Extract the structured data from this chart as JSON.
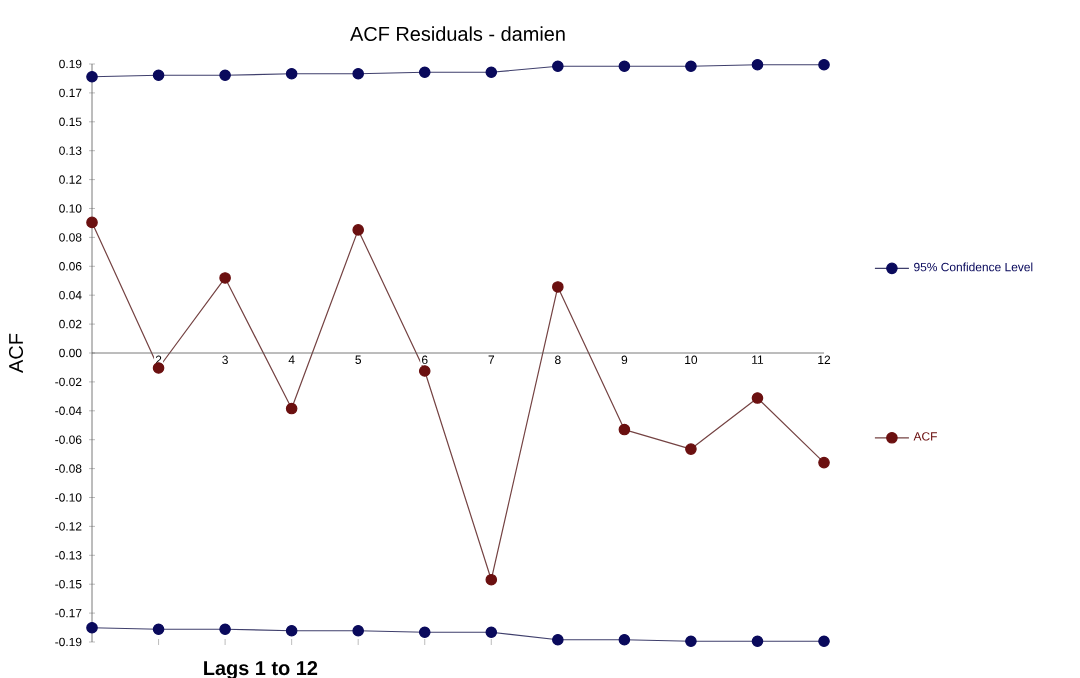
{
  "chart_data": {
    "type": "line",
    "title": "ACF Residuals - damien",
    "xlabel": "Lags  1 to 12",
    "ylabel": "ACF",
    "x": [
      1,
      2,
      3,
      4,
      5,
      6,
      7,
      8,
      9,
      10,
      11,
      12
    ],
    "series": [
      {
        "name": "95% Confidence Level",
        "color": "#0a0a5c",
        "values": [
          0.184,
          0.185,
          0.185,
          0.186,
          0.186,
          0.187,
          0.187,
          0.191,
          0.191,
          0.191,
          0.192,
          0.192
        ]
      },
      {
        "color": "#0a0a5c",
        "values": [
          -0.183,
          -0.184,
          -0.184,
          -0.185,
          -0.185,
          -0.186,
          -0.186,
          -0.191,
          -0.191,
          -0.192,
          -0.192,
          -0.192
        ]
      },
      {
        "name": "ACF",
        "color": "#6b1010",
        "values": [
          0.087,
          -0.01,
          0.05,
          -0.037,
          0.082,
          -0.012,
          -0.151,
          0.044,
          -0.051,
          -0.064,
          -0.03,
          -0.073
        ]
      }
    ],
    "xlim": [
      1,
      12
    ],
    "xticks": [
      2,
      3,
      4,
      5,
      6,
      7,
      8,
      9,
      10,
      11,
      12
    ],
    "ylim": [
      -0.1925,
      0.1925
    ],
    "yticks": [
      {
        "value": -0.1925,
        "label": "-0.19"
      },
      {
        "value": -0.17325,
        "label": "-0.17"
      },
      {
        "value": -0.154,
        "label": "-0.15"
      },
      {
        "value": -0.13475,
        "label": "-0.13"
      },
      {
        "value": -0.1155,
        "label": "-0.12"
      },
      {
        "value": -0.09625,
        "label": "-0.10"
      },
      {
        "value": -0.077,
        "label": "-0.08"
      },
      {
        "value": -0.05775,
        "label": "-0.06"
      },
      {
        "value": -0.0385,
        "label": "-0.04"
      },
      {
        "value": -0.01925,
        "label": "-0.02"
      },
      {
        "value": 0,
        "label": "0.00"
      },
      {
        "value": 0.01925,
        "label": "0.02"
      },
      {
        "value": 0.0385,
        "label": "0.04"
      },
      {
        "value": 0.05775,
        "label": "0.06"
      },
      {
        "value": 0.077,
        "label": "0.08"
      },
      {
        "value": 0.09625,
        "label": "0.10"
      },
      {
        "value": 0.1155,
        "label": "0.12"
      },
      {
        "value": 0.13475,
        "label": "0.13"
      },
      {
        "value": 0.154,
        "label": "0.15"
      },
      {
        "value": 0.17325,
        "label": "0.17"
      },
      {
        "value": 0.1925,
        "label": "0.19"
      }
    ],
    "marker": "circle",
    "line_style": "solid",
    "grid": false,
    "legend": "right"
  }
}
